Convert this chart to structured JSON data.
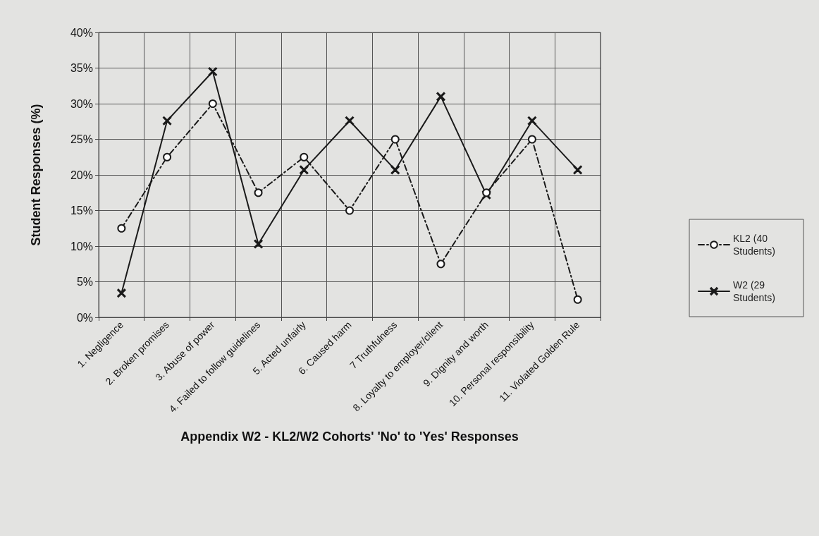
{
  "chart_data": {
    "type": "line",
    "xlabel": "Appendix W2 - KL2/W2 Cohorts' 'No' to 'Yes' Responses",
    "ylabel": "Student Responses (%)",
    "categories": [
      "1. Negligence",
      "2. Broken promises",
      "3. Abuse of power",
      "4. Failed to follow guidelines",
      "5. Acted unfairly",
      "6. Caused harm",
      "7 Truthfulness",
      "8. Loyalty to employer/client",
      "9. Dignity and worth",
      "10. Personal responsibility",
      "11. Violated Golden Rule"
    ],
    "series": [
      {
        "name": "KL2 (40 Students)",
        "color": "#1a1a1a",
        "marker": "circle",
        "line_style": "dashed",
        "values": [
          12.5,
          22.5,
          30,
          17.5,
          22.5,
          15,
          25,
          7.5,
          17.5,
          25,
          2.5
        ]
      },
      {
        "name": "W2 (29 Students)",
        "color": "#1a1a1a",
        "marker": "cross",
        "line_style": "solid",
        "values": [
          3.4,
          27.6,
          34.5,
          10.3,
          20.7,
          27.6,
          20.7,
          31.0,
          17.2,
          27.6,
          20.7
        ]
      }
    ],
    "ylim": [
      0,
      40
    ],
    "yticks": [
      {
        "value": 0,
        "label": "0%"
      },
      {
        "value": 5,
        "label": "5%"
      },
      {
        "value": 10,
        "label": "10%"
      },
      {
        "value": 15,
        "label": "15%"
      },
      {
        "value": 20,
        "label": "20%"
      },
      {
        "value": 25,
        "label": "25%"
      },
      {
        "value": 30,
        "label": "30%"
      },
      {
        "value": 35,
        "label": "35%"
      },
      {
        "value": 40,
        "label": "40%"
      }
    ],
    "grid": true,
    "legend": "right"
  }
}
